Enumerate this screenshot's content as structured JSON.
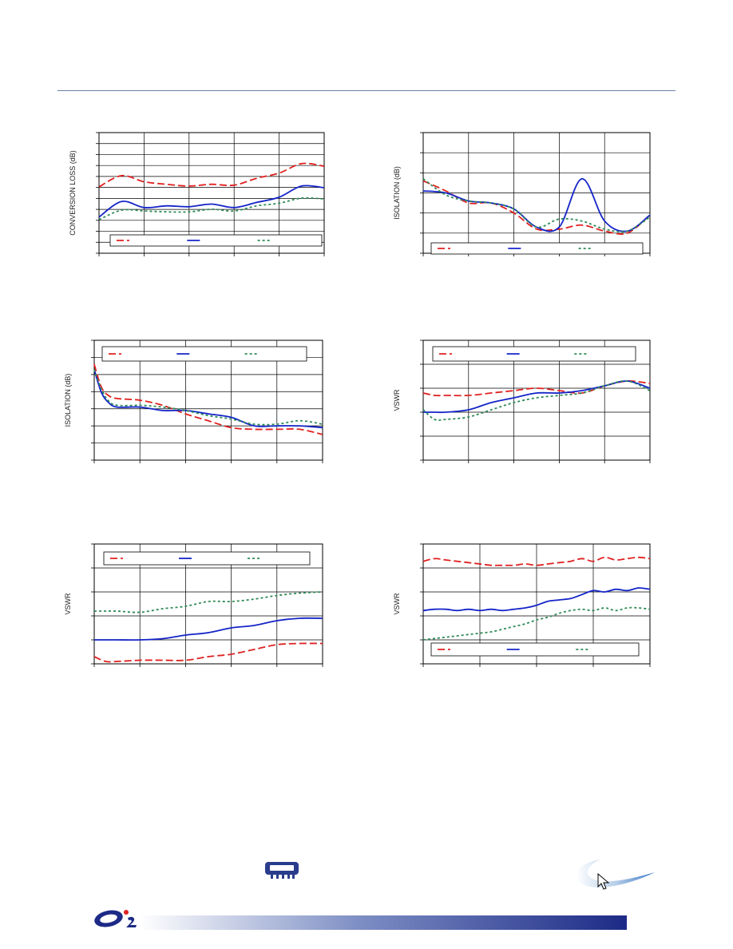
{
  "colors": {
    "red": "#e02020",
    "blue": "#1424c8",
    "green": "#2e8b57",
    "grid": "#000000",
    "rule": "#6c7fa6"
  },
  "icons": {
    "chip": "mmic-chip-icon",
    "logo": "company-logo-icon",
    "swoosh": "swoosh-graphic-icon",
    "cursor": "mouse-cursor-icon"
  },
  "chart_data": [
    {
      "type": "line",
      "ylabel": "CONVERSION LOSS (dB)",
      "legend": "bottom-inside",
      "grid": true,
      "x": [
        0,
        1,
        2,
        3,
        4,
        5,
        6,
        7,
        8,
        9,
        10
      ],
      "ylim": [
        0,
        14
      ],
      "series": [
        {
          "values": [
            7.7,
            9.0,
            8.3,
            8.0,
            7.8,
            8.0,
            7.9,
            8.7,
            9.3,
            10.4,
            10.1
          ]
        },
        {
          "values": [
            4.2,
            6.0,
            5.3,
            5.5,
            5.4,
            5.7,
            5.3,
            5.9,
            6.5,
            7.8,
            7.6
          ]
        },
        {
          "values": [
            3.9,
            5.0,
            4.9,
            4.8,
            4.8,
            5.1,
            4.9,
            5.5,
            5.8,
            6.4,
            6.3
          ]
        }
      ]
    },
    {
      "type": "line",
      "ylabel": "ISOLATION (dB)",
      "legend": "bottom-inside",
      "grid": true,
      "x": [
        0,
        1,
        2,
        3,
        4,
        5,
        6,
        7,
        8,
        9,
        10
      ],
      "ylim": [
        0,
        6
      ],
      "series": [
        {
          "values": [
            3.6,
            3.1,
            2.5,
            2.5,
            2.0,
            1.2,
            1.2,
            1.4,
            1.1,
            1.0,
            1.9
          ]
        },
        {
          "values": [
            3.1,
            3.0,
            2.6,
            2.5,
            2.2,
            1.3,
            1.3,
            3.7,
            1.6,
            1.1,
            1.9
          ]
        },
        {
          "values": [
            3.7,
            2.9,
            2.6,
            2.5,
            2.2,
            1.3,
            1.7,
            1.6,
            1.2,
            1.1,
            1.8
          ]
        }
      ]
    },
    {
      "type": "line",
      "ylabel": "ISOLATION (dB)",
      "legend": "top-inside",
      "grid": true,
      "x": [
        0,
        0.3,
        0.6,
        1,
        2,
        3,
        4,
        5,
        6,
        7,
        8,
        9,
        10
      ],
      "ylim": [
        0,
        7
      ],
      "series": [
        {
          "values": [
            5.6,
            4.3,
            3.8,
            3.6,
            3.5,
            3.2,
            2.7,
            2.3,
            1.9,
            1.8,
            1.8,
            1.8,
            1.5
          ]
        },
        {
          "values": [
            5.3,
            4.0,
            3.4,
            3.1,
            3.1,
            2.9,
            2.9,
            2.7,
            2.5,
            2.0,
            2.0,
            2.0,
            1.9
          ]
        },
        {
          "values": [
            5.3,
            4.2,
            3.5,
            3.2,
            3.2,
            3.1,
            2.9,
            2.6,
            2.4,
            2.1,
            2.1,
            2.3,
            2.1
          ]
        }
      ]
    },
    {
      "type": "line",
      "ylabel": "VSWR",
      "legend": "top-inside",
      "grid": true,
      "x": [
        0,
        0.5,
        1,
        2,
        3,
        4,
        5,
        6,
        7,
        8,
        9,
        10
      ],
      "ylim": [
        0,
        5
      ],
      "series": [
        {
          "values": [
            2.8,
            2.7,
            2.7,
            2.7,
            2.8,
            2.9,
            3.0,
            2.9,
            2.8,
            3.1,
            3.3,
            3.2
          ]
        },
        {
          "values": [
            2.0,
            2.0,
            2.0,
            2.1,
            2.4,
            2.6,
            2.8,
            2.8,
            2.9,
            3.1,
            3.3,
            3.0
          ]
        },
        {
          "values": [
            2.1,
            1.7,
            1.7,
            1.8,
            2.1,
            2.4,
            2.6,
            2.7,
            2.8,
            3.1,
            3.3,
            2.9
          ]
        }
      ]
    },
    {
      "type": "line",
      "ylabel": "VSWR",
      "legend": "top-inside",
      "grid": true,
      "x": [
        0,
        0.5,
        1,
        2,
        3,
        4,
        5,
        6,
        7,
        8,
        9,
        10
      ],
      "ylim": [
        0,
        5
      ],
      "series": [
        {
          "values": [
            0.3,
            0.1,
            0.1,
            0.15,
            0.15,
            0.15,
            0.3,
            0.4,
            0.6,
            0.8,
            0.85,
            0.85
          ]
        },
        {
          "values": [
            1.0,
            1.0,
            1.0,
            1.0,
            1.05,
            1.2,
            1.3,
            1.5,
            1.6,
            1.8,
            1.9,
            1.9
          ]
        },
        {
          "values": [
            2.2,
            2.2,
            2.2,
            2.15,
            2.3,
            2.4,
            2.6,
            2.6,
            2.7,
            2.85,
            2.95,
            3.0
          ]
        }
      ]
    },
    {
      "type": "line",
      "ylabel": "VSWR",
      "legend": "bottom-inside",
      "grid": true,
      "x": [
        0,
        0.5,
        1,
        1.5,
        2,
        2.5,
        3,
        3.5,
        4,
        4.5,
        5,
        5.5,
        6,
        6.5,
        7,
        7.5,
        8,
        8.5,
        9,
        9.5,
        10
      ],
      "ylim": [
        0,
        4.5
      ],
      "series": [
        {
          "values": [
            3.85,
            3.95,
            3.9,
            3.85,
            3.8,
            3.75,
            3.7,
            3.7,
            3.7,
            3.75,
            3.7,
            3.75,
            3.8,
            3.85,
            3.95,
            3.85,
            4.0,
            3.9,
            3.95,
            4.0,
            3.95
          ]
        },
        {
          "values": [
            2.0,
            2.05,
            2.05,
            2.0,
            2.05,
            2.0,
            2.05,
            2.0,
            2.05,
            2.1,
            2.2,
            2.35,
            2.4,
            2.45,
            2.6,
            2.75,
            2.7,
            2.8,
            2.75,
            2.85,
            2.8
          ]
        },
        {
          "values": [
            0.9,
            0.95,
            1.0,
            1.05,
            1.1,
            1.15,
            1.2,
            1.3,
            1.4,
            1.5,
            1.65,
            1.75,
            1.9,
            2.0,
            2.05,
            2.0,
            2.1,
            2.0,
            2.1,
            2.1,
            2.05
          ]
        }
      ]
    }
  ]
}
